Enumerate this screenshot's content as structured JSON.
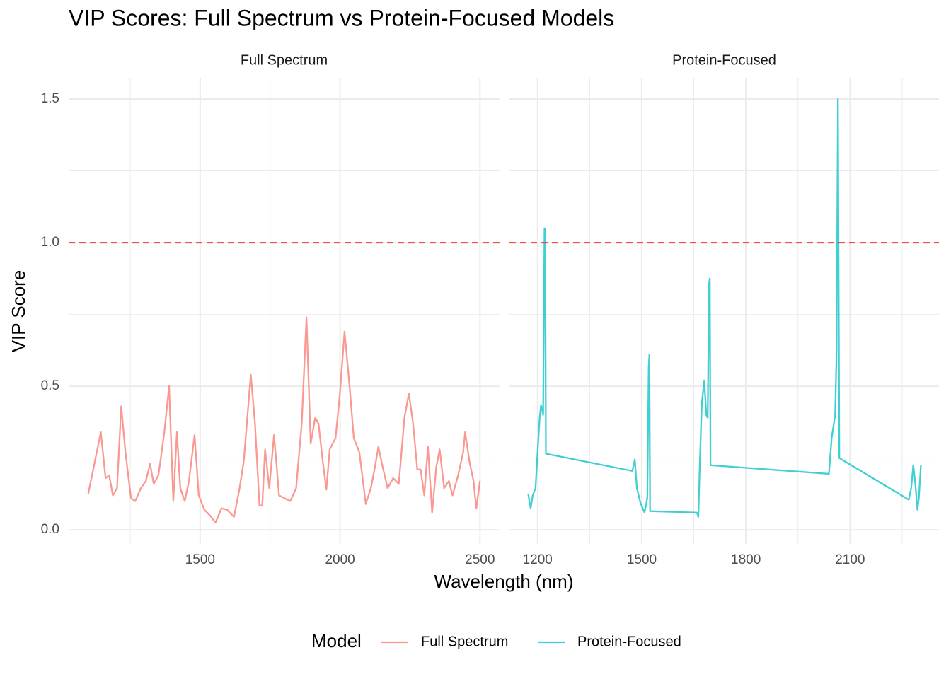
{
  "figure": {
    "title": "VIP Scores: Full Spectrum vs Protein-Focused Models",
    "xlabel": "Wavelength (nm)",
    "ylabel": "VIP Score",
    "legend_title": "Model",
    "legend_position": "bottom"
  },
  "chart_data": [
    {
      "type": "line",
      "title": "Full Spectrum",
      "x": [
        1100,
        1120,
        1145,
        1162,
        1175,
        1188,
        1203,
        1218,
        1233,
        1253,
        1268,
        1288,
        1306,
        1321,
        1334,
        1351,
        1372,
        1389,
        1404,
        1417,
        1429,
        1445,
        1460,
        1480,
        1495,
        1515,
        1535,
        1555,
        1576,
        1596,
        1621,
        1641,
        1656,
        1671,
        1681,
        1696,
        1712,
        1722,
        1732,
        1747,
        1764,
        1782,
        1802,
        1822,
        1843,
        1863,
        1880,
        1895,
        1911,
        1923,
        1938,
        1951,
        1963,
        1984,
        1999,
        2016,
        2034,
        2049,
        2069,
        2092,
        2110,
        2125,
        2137,
        2152,
        2170,
        2190,
        2210,
        2230,
        2246,
        2261,
        2276,
        2288,
        2301,
        2314,
        2329,
        2344,
        2356,
        2372,
        2389,
        2402,
        2422,
        2440,
        2447,
        2462,
        2477,
        2487,
        2500
      ],
      "series": [
        {
          "name": "Full Spectrum",
          "color": "#F8766D",
          "values": [
            0.125,
            0.22,
            0.34,
            0.18,
            0.19,
            0.12,
            0.145,
            0.43,
            0.27,
            0.11,
            0.1,
            0.145,
            0.17,
            0.23,
            0.16,
            0.19,
            0.34,
            0.5,
            0.1,
            0.34,
            0.145,
            0.1,
            0.17,
            0.33,
            0.12,
            0.07,
            0.05,
            0.025,
            0.075,
            0.07,
            0.045,
            0.145,
            0.24,
            0.42,
            0.54,
            0.37,
            0.085,
            0.085,
            0.28,
            0.145,
            0.33,
            0.12,
            0.11,
            0.1,
            0.145,
            0.37,
            0.74,
            0.3,
            0.39,
            0.37,
            0.24,
            0.14,
            0.28,
            0.32,
            0.47,
            0.69,
            0.5,
            0.32,
            0.27,
            0.09,
            0.145,
            0.22,
            0.29,
            0.22,
            0.145,
            0.18,
            0.16,
            0.39,
            0.475,
            0.37,
            0.21,
            0.21,
            0.12,
            0.29,
            0.06,
            0.22,
            0.28,
            0.145,
            0.17,
            0.12,
            0.19,
            0.27,
            0.34,
            0.24,
            0.17,
            0.075,
            0.17
          ]
        }
      ],
      "line_alpha": 0.75,
      "xlim": [
        1030,
        2570
      ],
      "xticks": [
        1500,
        2000,
        2500
      ],
      "xminorticks": [
        1250,
        1750,
        2250
      ],
      "ylim": [
        -0.049,
        1.574
      ],
      "yticks": [
        {
          "value": 0,
          "label": "0.0"
        },
        0.5,
        {
          "value": 1,
          "label": "1.0"
        },
        1.5
      ],
      "yminorticks": [
        0.25,
        0.75,
        1.25
      ],
      "hline": 1,
      "hline_color": "#f03b32",
      "grid": true
    },
    {
      "type": "line",
      "title": "Protein-Focused",
      "x": [
        1173,
        1180,
        1186,
        1194,
        1200,
        1206,
        1210,
        1216,
        1220,
        1222,
        1224,
        1473,
        1480,
        1486,
        1496,
        1508,
        1516,
        1520,
        1522,
        1524,
        1659,
        1663,
        1667,
        1673,
        1680,
        1686,
        1690,
        1694,
        1696,
        1698,
        2039,
        2047,
        2057,
        2061,
        2065,
        2069,
        2269,
        2276,
        2282,
        2288,
        2294,
        2298,
        2304
      ],
      "series": [
        {
          "name": "Protein-Focused",
          "color": "#00BFC4",
          "values": [
            0.125,
            0.075,
            0.12,
            0.145,
            0.27,
            0.39,
            0.435,
            0.4,
            1.05,
            1.045,
            0.265,
            0.205,
            0.245,
            0.145,
            0.095,
            0.06,
            0.11,
            0.565,
            0.61,
            0.065,
            0.06,
            0.045,
            0.22,
            0.44,
            0.52,
            0.4,
            0.39,
            0.86,
            0.875,
            0.225,
            0.195,
            0.32,
            0.4,
            0.61,
            1.5,
            0.25,
            0.105,
            0.145,
            0.225,
            0.16,
            0.07,
            0.11,
            0.225
          ]
        }
      ],
      "line_alpha": 0.75,
      "xlim": [
        1119,
        2356
      ],
      "xticks": [
        1200,
        1500,
        1800,
        2100
      ],
      "xminorticks": [
        1350,
        1650,
        1950,
        2250
      ],
      "ylim": [
        -0.049,
        1.574
      ],
      "yticks": [
        {
          "value": 0,
          "label": "0.0"
        },
        0.5,
        {
          "value": 1,
          "label": "1.0"
        },
        1.5
      ],
      "yminorticks": [
        0.25,
        0.75,
        1.25
      ],
      "hline": 1,
      "hline_color": "#f03b32",
      "grid": true
    }
  ]
}
